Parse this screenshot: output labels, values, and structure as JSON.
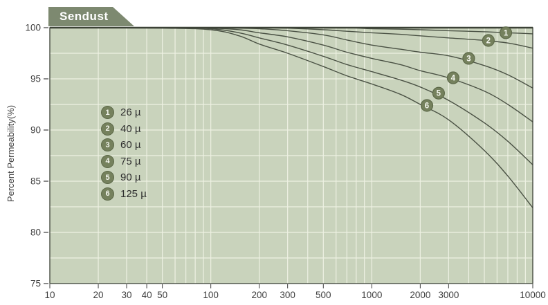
{
  "title_tab": "Sendust",
  "colors": {
    "tab_bg": "#7d8970",
    "tab_text": "#ffffff",
    "plot_bg": "#c9d3bc",
    "grid": "#eef1e3",
    "border": "#3c4237",
    "curve": "#4a5144",
    "marker_fill": "#75815d",
    "marker_stroke": "#5d6949",
    "marker_text": "#f4f6ee",
    "axis_text": "#3d3d3d",
    "legend_text": "#2e2e2e"
  },
  "chart_data": {
    "type": "line",
    "title": "Sendust",
    "x_scale": "log",
    "xlim": [
      10,
      10000
    ],
    "ylim": [
      75,
      100
    ],
    "x_ticks": [
      10,
      20,
      30,
      40,
      50,
      100,
      200,
      300,
      500,
      1000,
      2000,
      3000,
      10000
    ],
    "y_ticks": [
      75,
      80,
      85,
      90,
      95,
      100
    ],
    "y_minor_grid_step": 2.5,
    "grid": "on",
    "legend_position": "upper-left-inside",
    "xlabel": "",
    "ylabel": "Percent Permeability(%)",
    "x": [
      10,
      50,
      100,
      150,
      200,
      300,
      500,
      700,
      1000,
      1500,
      2000,
      3000,
      5000,
      7000,
      10000
    ],
    "series": [
      {
        "num": "1",
        "name": "26 µ",
        "values": [
          100,
          100,
          100,
          100,
          100,
          100,
          100,
          100,
          99.9,
          99.85,
          99.8,
          99.7,
          99.6,
          99.5,
          99.4
        ],
        "marker_at": {
          "x": 6800,
          "y": 99.5
        }
      },
      {
        "num": "2",
        "name": "40 µ",
        "values": [
          100,
          100,
          100,
          100,
          100,
          99.95,
          99.8,
          99.65,
          99.5,
          99.35,
          99.2,
          99.0,
          98.75,
          98.5,
          98.0
        ],
        "marker_at": {
          "x": 5300,
          "y": 98.75
        }
      },
      {
        "num": "3",
        "name": "60 µ",
        "values": [
          100,
          100,
          100,
          99.95,
          99.9,
          99.7,
          99.3,
          98.8,
          98.3,
          97.9,
          97.6,
          97.25,
          96.3,
          95.4,
          94.1
        ],
        "marker_at": {
          "x": 4000,
          "y": 97.0
        }
      },
      {
        "num": "4",
        "name": "75 µ",
        "values": [
          100,
          100,
          99.95,
          99.8,
          99.5,
          99.1,
          98.3,
          97.6,
          97.0,
          96.4,
          95.8,
          95.1,
          93.8,
          92.5,
          90.8
        ],
        "marker_at": {
          "x": 3200,
          "y": 95.1
        }
      },
      {
        "num": "5",
        "name": "90 µ",
        "values": [
          100,
          100,
          99.9,
          99.5,
          99.0,
          98.3,
          97.2,
          96.4,
          95.7,
          94.9,
          94.2,
          92.9,
          90.7,
          88.9,
          86.6
        ],
        "marker_at": {
          "x": 2600,
          "y": 93.6
        }
      },
      {
        "num": "6",
        "name": "125 µ",
        "values": [
          100,
          99.95,
          99.8,
          99.2,
          98.4,
          97.5,
          96.2,
          95.3,
          94.5,
          93.5,
          92.5,
          91.0,
          88.0,
          85.5,
          82.4
        ],
        "marker_at": {
          "x": 2200,
          "y": 92.4
        }
      }
    ]
  }
}
